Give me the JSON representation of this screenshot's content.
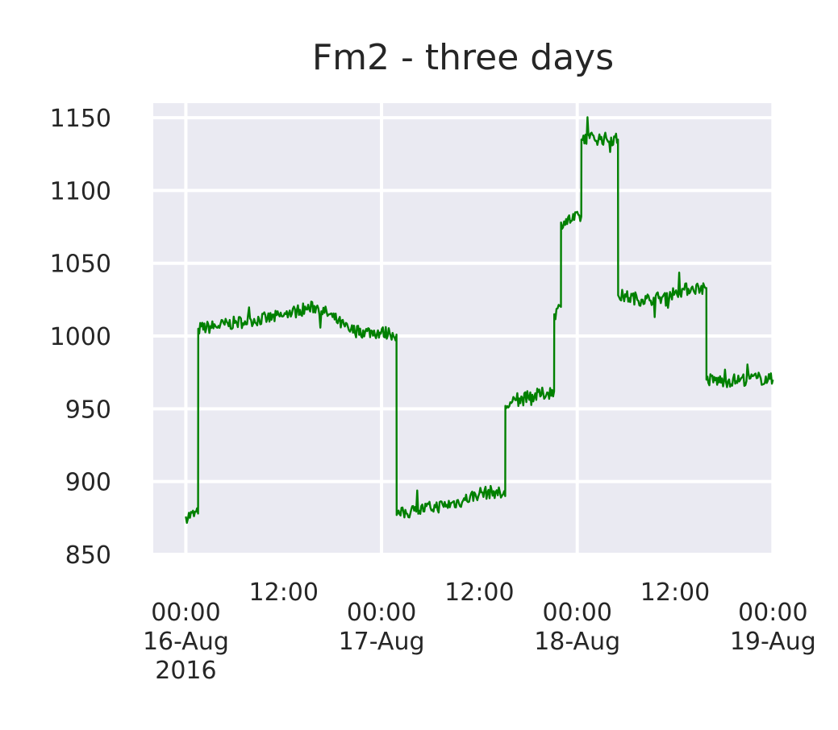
{
  "chart_data": {
    "type": "line",
    "title": "Fm2 - three days",
    "xlabel": "",
    "ylabel": "",
    "x_range": [
      "2016-08-15 20:00",
      "2016-08-19 00:10"
    ],
    "ylim": [
      850,
      1160
    ],
    "grid": true,
    "legend": "none",
    "y_ticks": [
      850,
      900,
      950,
      1000,
      1050,
      1100,
      1150
    ],
    "x_major_ticks": [
      {
        "x": "2016-08-16 00:00",
        "label_lines": [
          "00:00",
          "16-Aug",
          "2016"
        ]
      },
      {
        "x": "2016-08-17 00:00",
        "label_lines": [
          "00:00",
          "17-Aug"
        ]
      },
      {
        "x": "2016-08-18 00:00",
        "label_lines": [
          "00:00",
          "18-Aug"
        ]
      },
      {
        "x": "2016-08-19 00:00",
        "label_lines": [
          "00:00",
          "19-Aug"
        ]
      }
    ],
    "x_minor_ticks": [
      {
        "x": "2016-08-16 12:00",
        "label": "12:00"
      },
      {
        "x": "2016-08-17 12:00",
        "label": "12:00"
      },
      {
        "x": "2016-08-18 12:00",
        "label": "12:00"
      }
    ],
    "series": [
      {
        "color": "#008000",
        "x": [
          "2016-08-16 00:00",
          "2016-08-16 01:30",
          "2016-08-16 01:31",
          "2016-08-16 04:00",
          "2016-08-16 06:00",
          "2016-08-16 08:00",
          "2016-08-16 10:00",
          "2016-08-16 12:00",
          "2016-08-16 14:00",
          "2016-08-16 16:00",
          "2016-08-16 18:00",
          "2016-08-16 20:00",
          "2016-08-16 22:00",
          "2016-08-17 01:00",
          "2016-08-17 01:50",
          "2016-08-17 01:51",
          "2016-08-17 04:00",
          "2016-08-17 06:00",
          "2016-08-17 08:00",
          "2016-08-17 10:00",
          "2016-08-17 12:00",
          "2016-08-17 14:00",
          "2016-08-17 15:10",
          "2016-08-17 15:11",
          "2016-08-17 18:00",
          "2016-08-17 21:10",
          "2016-08-17 21:11",
          "2016-08-17 22:00",
          "2016-08-17 22:01",
          "2016-08-18 00:30",
          "2016-08-18 00:31",
          "2016-08-18 01:30",
          "2016-08-18 01:31",
          "2016-08-18 05:00",
          "2016-08-18 05:01",
          "2016-08-18 06:00",
          "2016-08-18 08:00",
          "2016-08-18 10:00",
          "2016-08-18 12:00",
          "2016-08-18 14:00",
          "2016-08-18 15:50",
          "2016-08-18 15:51",
          "2016-08-18 18:00",
          "2016-08-18 20:00",
          "2016-08-18 22:00",
          "2016-08-19 00:00"
        ],
        "y": [
          876,
          878,
          1005,
          1007,
          1009,
          1011,
          1012,
          1014,
          1018,
          1020,
          1013,
          1004,
          1003,
          1002,
          1001,
          877,
          880,
          882,
          884,
          887,
          892,
          893,
          890,
          952,
          958,
          962,
          1015,
          1020,
          1078,
          1082,
          1135,
          1137,
          1136,
          1135,
          1028,
          1027,
          1025,
          1026,
          1030,
          1033,
          1033,
          970,
          969,
          970,
          971,
          970
        ]
      }
    ]
  }
}
